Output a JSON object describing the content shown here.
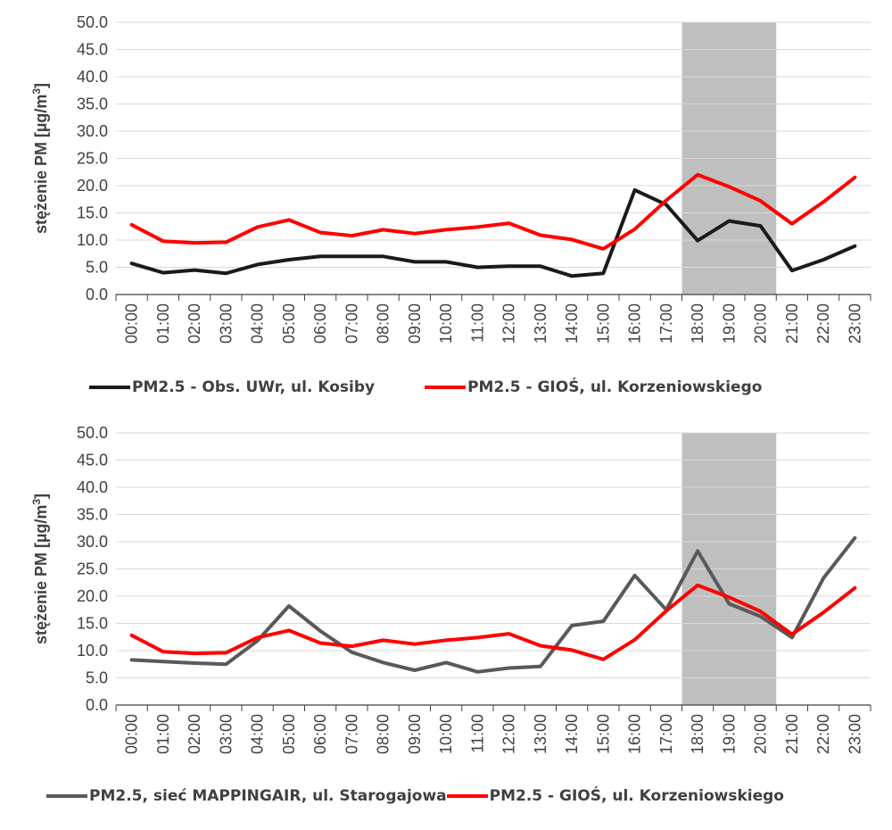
{
  "chart_data": [
    {
      "type": "line",
      "ylabel": "stężenie PM [µg/m³]",
      "ylabel_main": "stężenie PM [µg/m",
      "ylabel_sup": "3",
      "ylabel_end": "]",
      "ylim": [
        0,
        50
      ],
      "yticks": [
        "0.0",
        "5.0",
        "10.0",
        "15.0",
        "20.0",
        "25.0",
        "30.0",
        "35.0",
        "40.0",
        "45.0",
        "50.0"
      ],
      "grid": true,
      "legend_position": "bottom",
      "shaded_band": [
        "17:00",
        "20:00"
      ],
      "shade_color": "#bfbfbf",
      "categories": [
        "00:00",
        "01:00",
        "02:00",
        "03:00",
        "04:00",
        "05:00",
        "06:00",
        "07:00",
        "08:00",
        "09:00",
        "10:00",
        "11:00",
        "12:00",
        "13:00",
        "14:00",
        "15:00",
        "16:00",
        "17:00",
        "18:00",
        "19:00",
        "20:00",
        "21:00",
        "22:00",
        "23:00"
      ],
      "series": [
        {
          "name": "PM2.5 - Obs. UWr, ul. Kosiby",
          "color": "#1a1a1a",
          "values": [
            5.7,
            4.0,
            4.5,
            3.9,
            5.5,
            6.4,
            7.0,
            7.0,
            7.0,
            6.0,
            6.0,
            5.0,
            5.2,
            5.2,
            3.4,
            3.9,
            19.2,
            16.5,
            9.9,
            13.5,
            12.6,
            4.4,
            6.4,
            8.9
          ]
        },
        {
          "name": "PM2.5 - GIOŚ, ul. Korzeniowskiego",
          "color": "#ff0000",
          "values": [
            12.8,
            9.8,
            9.5,
            9.6,
            12.4,
            13.7,
            11.4,
            10.8,
            11.9,
            11.2,
            11.9,
            12.4,
            13.1,
            10.9,
            10.1,
            8.4,
            12.0,
            17.3,
            22.0,
            19.8,
            17.2,
            13.0,
            17.0,
            21.5
          ]
        }
      ]
    },
    {
      "type": "line",
      "ylabel": "stężenie PM [µg/m³]",
      "ylabel_main": "stężenie PM [µg/m",
      "ylabel_sup": "3",
      "ylabel_end": "]",
      "ylim": [
        0,
        50
      ],
      "yticks": [
        "0.0",
        "5.0",
        "10.0",
        "15.0",
        "20.0",
        "25.0",
        "30.0",
        "35.0",
        "40.0",
        "45.0",
        "50.0"
      ],
      "grid": true,
      "legend_position": "bottom",
      "shaded_band": [
        "17:00",
        "20:00"
      ],
      "shade_color": "#bfbfbf",
      "categories": [
        "00:00",
        "01:00",
        "02:00",
        "03:00",
        "04:00",
        "05:00",
        "06:00",
        "07:00",
        "08:00",
        "09:00",
        "10:00",
        "11:00",
        "12:00",
        "13:00",
        "14:00",
        "15:00",
        "16:00",
        "17:00",
        "18:00",
        "19:00",
        "20:00",
        "21:00",
        "22:00",
        "23:00"
      ],
      "series": [
        {
          "name": "PM2.5, sieć MAPPINGAIR, ul. Starogajowa",
          "color": "#595959",
          "values": [
            8.3,
            8.0,
            7.7,
            7.5,
            11.8,
            18.2,
            13.6,
            9.7,
            7.8,
            6.4,
            7.8,
            6.1,
            6.8,
            7.1,
            14.6,
            15.4,
            23.8,
            17.5,
            28.3,
            18.6,
            16.3,
            12.4,
            23.3,
            30.7
          ]
        },
        {
          "name": "PM2.5 - GIOŚ, ul. Korzeniowskiego",
          "color": "#ff0000",
          "values": [
            12.8,
            9.8,
            9.5,
            9.6,
            12.4,
            13.7,
            11.4,
            10.8,
            11.9,
            11.2,
            11.9,
            12.4,
            13.1,
            10.9,
            10.1,
            8.4,
            12.0,
            17.3,
            22.0,
            19.8,
            17.2,
            13.0,
            17.0,
            21.5
          ]
        }
      ]
    }
  ]
}
